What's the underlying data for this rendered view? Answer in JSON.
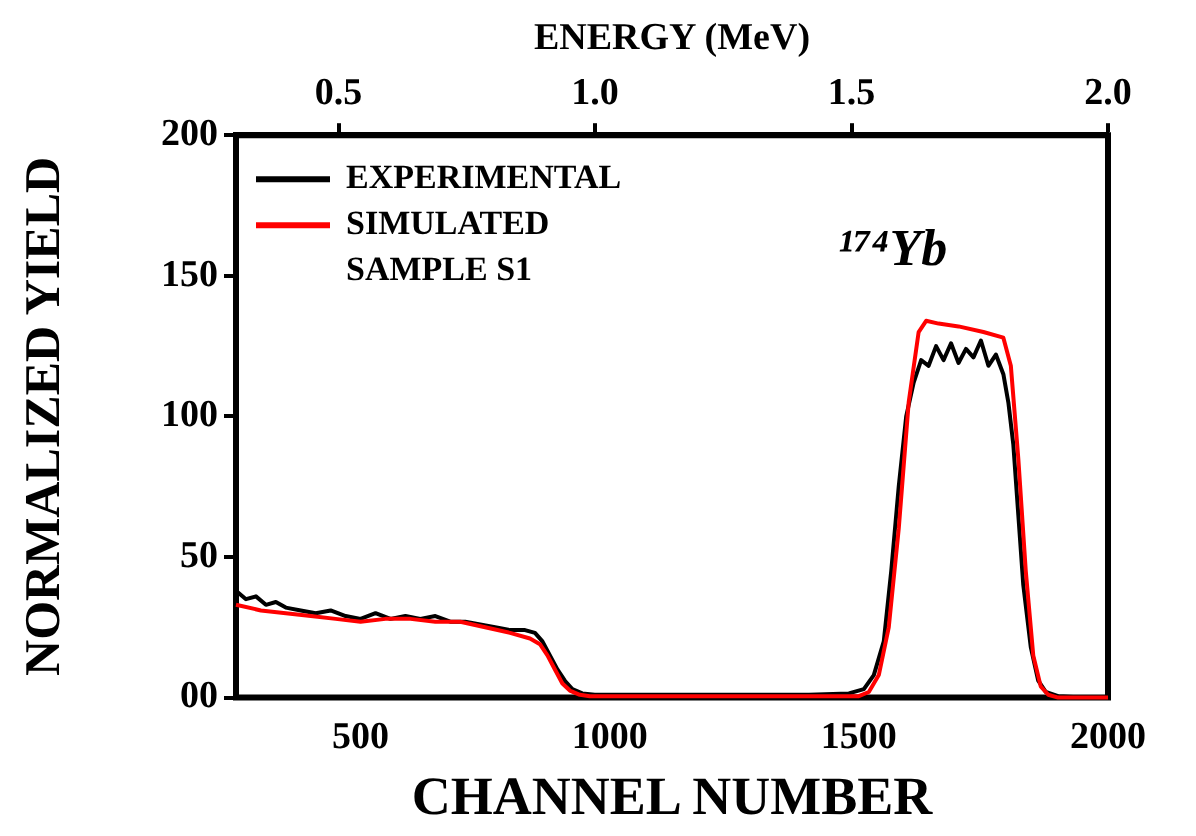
{
  "chart_data": {
    "type": "line",
    "xlabel": "CHANNEL NUMBER",
    "ylabel": "NORMALIZED YIELD",
    "x2label": "ENERGY (MeV)",
    "xlim": [
      250,
      2000
    ],
    "xticks": [
      500,
      1000,
      1500,
      2000
    ],
    "x2lim": [
      0.3,
      2.0
    ],
    "x2ticks": [
      0.5,
      {
        "value": 1.0,
        "label": "1.0"
      },
      1.5,
      {
        "value": 2.0,
        "label": "2.0"
      }
    ],
    "ylim": [
      0,
      200
    ],
    "yticks": [
      {
        "value": 0,
        "label": "00"
      },
      50,
      100,
      150,
      200
    ],
    "legend": "top left",
    "marker": "none",
    "line_style": "solid",
    "annotations": [
      "SAMPLE S1",
      "¹⁷⁴Yb"
    ],
    "series": [
      {
        "name": "EXPERIMENTAL",
        "color": "#000000",
        "x": [
          250,
          270,
          290,
          310,
          330,
          350,
          380,
          410,
          440,
          470,
          500,
          530,
          560,
          590,
          620,
          650,
          680,
          710,
          740,
          770,
          800,
          830,
          850,
          865,
          880,
          895,
          910,
          925,
          945,
          970,
          1000,
          1100,
          1200,
          1300,
          1400,
          1480,
          1510,
          1530,
          1550,
          1565,
          1580,
          1595,
          1610,
          1625,
          1640,
          1655,
          1670,
          1685,
          1700,
          1715,
          1730,
          1745,
          1760,
          1775,
          1790,
          1800,
          1810,
          1820,
          1830,
          1845,
          1860,
          1875,
          1900,
          1950,
          2000
        ],
        "values": [
          38,
          35,
          36,
          33,
          34,
          32,
          31,
          30,
          31,
          29,
          28,
          30,
          28,
          29,
          28,
          29,
          27,
          27,
          26,
          25,
          24,
          24,
          23,
          20,
          15,
          10,
          6,
          3,
          1.5,
          1,
          1,
          1,
          1,
          1,
          1,
          1.5,
          3,
          8,
          20,
          45,
          75,
          100,
          112,
          120,
          118,
          125,
          120,
          126,
          119,
          124,
          121,
          127,
          118,
          122,
          115,
          105,
          90,
          65,
          40,
          18,
          6,
          2,
          0.5,
          0,
          0
        ]
      },
      {
        "name": "SIMULATED",
        "color": "#ff0000",
        "x": [
          250,
          300,
          350,
          400,
          450,
          500,
          550,
          600,
          650,
          700,
          750,
          800,
          840,
          860,
          875,
          890,
          905,
          920,
          940,
          960,
          1000,
          1200,
          1400,
          1500,
          1520,
          1540,
          1560,
          1580,
          1600,
          1620,
          1635,
          1660,
          1700,
          1750,
          1790,
          1805,
          1820,
          1835,
          1850,
          1865,
          1880,
          1900,
          2000
        ],
        "values": [
          33,
          31,
          30,
          29,
          28,
          27,
          28,
          28,
          27,
          27,
          25,
          23,
          21,
          19,
          15,
          10,
          5,
          2.5,
          1,
          0.5,
          0.5,
          0.5,
          0.5,
          0.5,
          2,
          8,
          25,
          60,
          105,
          130,
          134,
          133,
          132,
          130,
          128,
          118,
          85,
          45,
          15,
          4,
          1,
          0,
          0
        ]
      }
    ]
  }
}
